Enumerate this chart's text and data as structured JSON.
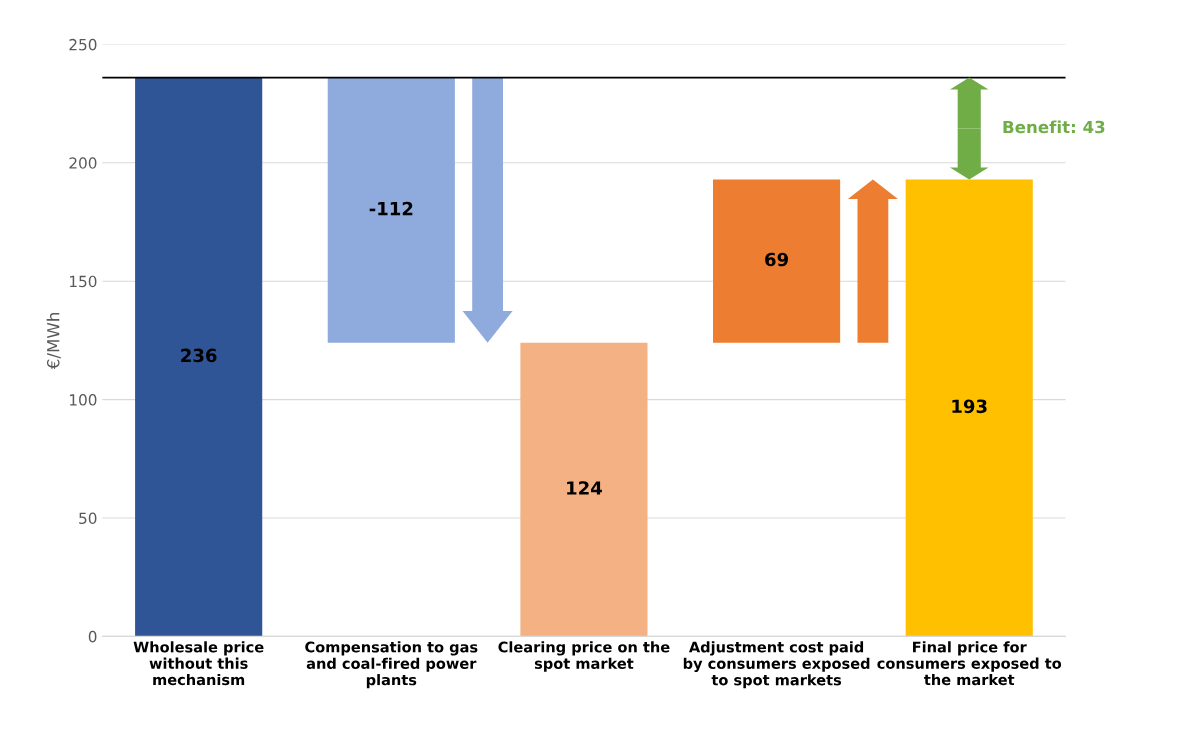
{
  "chart_data": {
    "type": "bar",
    "ylabel": "€/MWh",
    "categories": [
      "Wholesale price without this mechanism",
      "Compensation to gas and coal-fired power plants",
      "Clearing price on the spot market",
      "Adjustment cost paid by consumers exposed to spot markets",
      "Final price for consumers exposed to the market"
    ],
    "values": [
      236,
      -112,
      124,
      69,
      193
    ],
    "base": [
      0,
      236,
      0,
      124,
      0
    ],
    "colors": [
      "#2f5597",
      "#8faadc",
      "#f4b183",
      "#ed7d31",
      "#ffc000"
    ],
    "data_labels": true,
    "ylim": [
      0,
      250
    ],
    "yticks": [
      0,
      50,
      100,
      150,
      200,
      250
    ],
    "grid": "y",
    "ref_lines": [
      {
        "axis": "y",
        "value": 236,
        "color": "#000000"
      }
    ],
    "annotations": [
      "Benefit: 43"
    ]
  }
}
